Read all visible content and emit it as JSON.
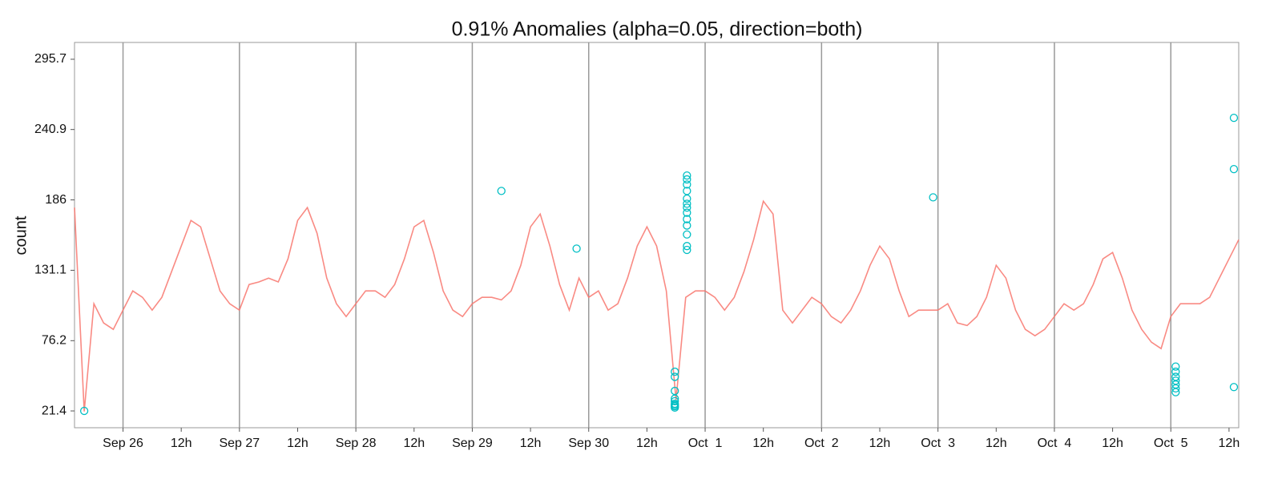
{
  "chart_data": {
    "type": "line",
    "title": "0.91% Anomalies (alpha=0.05, direction=both)",
    "y_label": "count",
    "ylim": [
      8.3,
      308.8
    ],
    "yticks": [
      21.4,
      76.2,
      131.1,
      186,
      240.9,
      295.7
    ],
    "xlim": [
      "Sep 25 14:00",
      "Oct 5 14:00"
    ],
    "xticks": [
      {
        "value": "Sep 26 00:00",
        "label": "Sep 26"
      },
      {
        "value": "Sep 26 12:00",
        "label": "12h"
      },
      {
        "value": "Sep 27 00:00",
        "label": "Sep 27"
      },
      {
        "value": "Sep 27 12:00",
        "label": "12h"
      },
      {
        "value": "Sep 28 00:00",
        "label": "Sep 28"
      },
      {
        "value": "Sep 28 12:00",
        "label": "12h"
      },
      {
        "value": "Sep 29 00:00",
        "label": "Sep 29"
      },
      {
        "value": "Sep 29 12:00",
        "label": "12h"
      },
      {
        "value": "Sep 30 00:00",
        "label": "Sep 30"
      },
      {
        "value": "Sep 30 12:00",
        "label": "12h"
      },
      {
        "value": "Oct 1 00:00",
        "label": "Oct  1"
      },
      {
        "value": "Oct 1 12:00",
        "label": "12h"
      },
      {
        "value": "Oct 2 00:00",
        "label": "Oct  2"
      },
      {
        "value": "Oct 2 12:00",
        "label": "12h"
      },
      {
        "value": "Oct 3 00:00",
        "label": "Oct  3"
      },
      {
        "value": "Oct 3 12:00",
        "label": "12h"
      },
      {
        "value": "Oct 4 00:00",
        "label": "Oct  4"
      },
      {
        "value": "Oct 4 12:00",
        "label": "12h"
      },
      {
        "value": "Oct 5 00:00",
        "label": "Oct  5"
      },
      {
        "value": "Oct 5 12:00",
        "label": "12h"
      }
    ],
    "x": [
      "Sep 25 14:00",
      "Sep 25 16:00",
      "Sep 25 18:00",
      "Sep 25 20:00",
      "Sep 25 22:00",
      "Sep 26 00:00",
      "Sep 26 02:00",
      "Sep 26 04:00",
      "Sep 26 06:00",
      "Sep 26 08:00",
      "Sep 26 10:00",
      "Sep 26 12:00",
      "Sep 26 14:00",
      "Sep 26 16:00",
      "Sep 26 18:00",
      "Sep 26 20:00",
      "Sep 26 22:00",
      "Sep 27 00:00",
      "Sep 27 02:00",
      "Sep 27 04:00",
      "Sep 27 06:00",
      "Sep 27 08:00",
      "Sep 27 10:00",
      "Sep 27 12:00",
      "Sep 27 14:00",
      "Sep 27 16:00",
      "Sep 27 18:00",
      "Sep 27 20:00",
      "Sep 27 22:00",
      "Sep 28 00:00",
      "Sep 28 02:00",
      "Sep 28 04:00",
      "Sep 28 06:00",
      "Sep 28 08:00",
      "Sep 28 10:00",
      "Sep 28 12:00",
      "Sep 28 14:00",
      "Sep 28 16:00",
      "Sep 28 18:00",
      "Sep 28 20:00",
      "Sep 28 22:00",
      "Sep 29 00:00",
      "Sep 29 02:00",
      "Sep 29 04:00",
      "Sep 29 06:00",
      "Sep 29 08:00",
      "Sep 29 10:00",
      "Sep 29 12:00",
      "Sep 29 14:00",
      "Sep 29 16:00",
      "Sep 29 18:00",
      "Sep 29 20:00",
      "Sep 29 22:00",
      "Sep 30 00:00",
      "Sep 30 02:00",
      "Sep 30 04:00",
      "Sep 30 06:00",
      "Sep 30 08:00",
      "Sep 30 10:00",
      "Sep 30 12:00",
      "Sep 30 14:00",
      "Sep 30 16:00",
      "Sep 30 18:00",
      "Sep 30 20:00",
      "Sep 30 22:00",
      "Oct 1 00:00",
      "Oct 1 02:00",
      "Oct 1 04:00",
      "Oct 1 06:00",
      "Oct 1 08:00",
      "Oct 1 10:00",
      "Oct 1 12:00",
      "Oct 1 14:00",
      "Oct 1 16:00",
      "Oct 1 18:00",
      "Oct 1 20:00",
      "Oct 1 22:00",
      "Oct 2 00:00",
      "Oct 2 02:00",
      "Oct 2 04:00",
      "Oct 2 06:00",
      "Oct 2 08:00",
      "Oct 2 10:00",
      "Oct 2 12:00",
      "Oct 2 14:00",
      "Oct 2 16:00",
      "Oct 2 18:00",
      "Oct 2 20:00",
      "Oct 2 22:00",
      "Oct 3 00:00",
      "Oct 3 02:00",
      "Oct 3 04:00",
      "Oct 3 06:00",
      "Oct 3 08:00",
      "Oct 3 10:00",
      "Oct 3 12:00",
      "Oct 3 14:00",
      "Oct 3 16:00",
      "Oct 3 18:00",
      "Oct 3 20:00",
      "Oct 3 22:00",
      "Oct 4 00:00",
      "Oct 4 02:00",
      "Oct 4 04:00",
      "Oct 4 06:00",
      "Oct 4 08:00",
      "Oct 4 10:00",
      "Oct 4 12:00",
      "Oct 4 14:00",
      "Oct 4 16:00",
      "Oct 4 18:00",
      "Oct 4 20:00",
      "Oct 4 22:00",
      "Oct 5 00:00",
      "Oct 5 02:00",
      "Oct 5 04:00",
      "Oct 5 06:00",
      "Oct 5 08:00",
      "Oct 5 10:00",
      "Oct 5 12:00",
      "Oct 5 14:00"
    ],
    "series": [
      {
        "color": "#f8766d",
        "values": [
          180,
          21,
          105,
          90,
          85,
          100,
          115,
          110,
          100,
          110,
          130,
          150,
          170,
          165,
          140,
          115,
          105,
          100,
          120,
          122,
          125,
          122,
          140,
          170,
          180,
          160,
          125,
          105,
          95,
          105,
          115,
          115,
          110,
          120,
          140,
          165,
          170,
          145,
          115,
          100,
          95,
          105,
          110,
          110,
          108,
          115,
          135,
          165,
          175,
          150,
          120,
          100,
          125,
          110,
          115,
          100,
          105,
          125,
          150,
          165,
          150,
          115,
          30,
          110,
          115,
          115,
          110,
          100,
          110,
          130,
          155,
          185,
          175,
          100,
          90,
          100,
          110,
          105,
          95,
          90,
          100,
          115,
          135,
          150,
          140,
          115,
          95,
          100,
          100,
          100,
          105,
          90,
          88,
          95,
          110,
          135,
          125,
          100,
          85,
          80,
          85,
          95,
          105,
          100,
          105,
          120,
          140,
          145,
          125,
          100,
          85,
          75,
          70,
          95,
          105,
          105,
          105,
          110,
          125,
          140,
          155
        ]
      }
    ],
    "anomalies": {
      "color": "#00bfc4",
      "x": [
        "Sep 25 16:00",
        "Sep 29 06:00",
        "Sep 29 21:30",
        "Sep 30 17:45",
        "Sep 30 17:45",
        "Sep 30 17:45",
        "Sep 30 17:45",
        "Sep 30 17:45",
        "Sep 30 17:45",
        "Sep 30 17:45",
        "Sep 30 17:45",
        "Sep 30 17:45",
        "Sep 30 20:15",
        "Sep 30 20:15",
        "Sep 30 20:15",
        "Sep 30 20:15",
        "Sep 30 20:15",
        "Sep 30 20:15",
        "Sep 30 20:15",
        "Sep 30 20:15",
        "Sep 30 20:15",
        "Sep 30 20:15",
        "Sep 30 20:15",
        "Sep 30 20:15",
        "Sep 30 20:15",
        "Oct 2 23:00",
        "Oct 5 01:00",
        "Oct 5 01:00",
        "Oct 5 01:00",
        "Oct 5 01:00",
        "Oct 5 01:00",
        "Oct 5 01:00",
        "Oct 5 01:00",
        "Oct 5 13:00",
        "Oct 5 13:00",
        "Oct 5 13:00"
      ],
      "values": [
        21.4,
        193,
        148,
        52,
        48,
        37,
        31,
        29,
        27,
        26,
        25,
        24,
        205,
        202,
        198,
        193,
        187,
        183,
        180,
        176,
        171,
        166,
        159,
        150,
        147,
        188,
        56,
        52,
        48,
        45,
        42,
        39,
        36,
        250,
        210,
        40
      ]
    }
  }
}
